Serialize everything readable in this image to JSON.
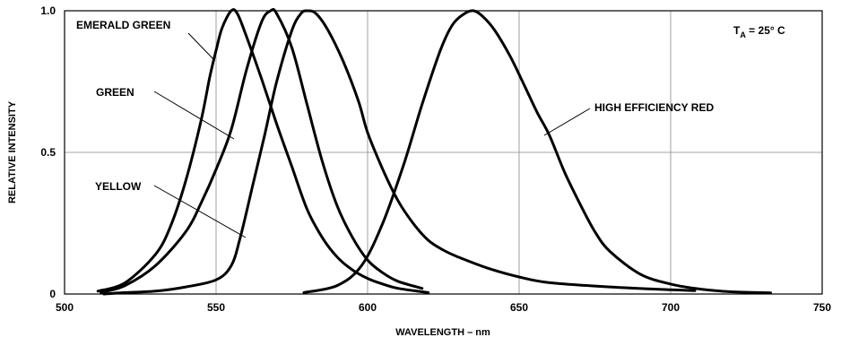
{
  "chart_data": {
    "type": "line",
    "xlabel": "WAVELENGTH – nm",
    "ylabel": "RELATIVE INTENSITY",
    "xlim": [
      500,
      750
    ],
    "ylim": [
      0,
      1.0
    ],
    "x_ticks": [
      500,
      550,
      600,
      650,
      700,
      750
    ],
    "x_tick_labels": [
      "500",
      "550",
      "600",
      "650",
      "700",
      "750"
    ],
    "y_ticks": [
      0,
      0.5,
      1.0
    ],
    "y_tick_labels": [
      "0",
      "0.5",
      "1.0"
    ],
    "grid": true,
    "condition": {
      "main": "T",
      "sub": "A",
      "rest": " = 25° C"
    },
    "series": [
      {
        "name": "EMERALD GREEN",
        "points": [
          [
            511,
            0.01
          ],
          [
            520,
            0.04
          ],
          [
            530,
            0.14
          ],
          [
            535,
            0.24
          ],
          [
            540,
            0.4
          ],
          [
            545,
            0.61
          ],
          [
            548,
            0.77
          ],
          [
            550,
            0.86
          ],
          [
            552,
            0.94
          ],
          [
            555,
            1.0
          ],
          [
            557,
            0.99
          ],
          [
            560,
            0.91
          ],
          [
            565,
            0.76
          ],
          [
            570,
            0.6
          ],
          [
            575,
            0.45
          ],
          [
            580,
            0.3
          ],
          [
            585,
            0.2
          ],
          [
            590,
            0.13
          ],
          [
            595,
            0.085
          ],
          [
            600,
            0.055
          ],
          [
            605,
            0.035
          ],
          [
            610,
            0.02
          ],
          [
            620,
            0.005
          ]
        ]
      },
      {
        "name": "GREEN",
        "points": [
          [
            512,
            0.005
          ],
          [
            520,
            0.03
          ],
          [
            530,
            0.1
          ],
          [
            540,
            0.22
          ],
          [
            545,
            0.32
          ],
          [
            550,
            0.44
          ],
          [
            555,
            0.58
          ],
          [
            560,
            0.79
          ],
          [
            565,
            0.96
          ],
          [
            568,
            1.0
          ],
          [
            570,
            0.99
          ],
          [
            575,
            0.87
          ],
          [
            580,
            0.67
          ],
          [
            585,
            0.47
          ],
          [
            590,
            0.31
          ],
          [
            595,
            0.2
          ],
          [
            600,
            0.12
          ],
          [
            605,
            0.075
          ],
          [
            610,
            0.045
          ],
          [
            618,
            0.02
          ]
        ]
      },
      {
        "name": "YELLOW",
        "points": [
          [
            513,
            0.0
          ],
          [
            520,
            0.005
          ],
          [
            530,
            0.01
          ],
          [
            540,
            0.025
          ],
          [
            550,
            0.05
          ],
          [
            555,
            0.1
          ],
          [
            558,
            0.2
          ],
          [
            562,
            0.38
          ],
          [
            566,
            0.56
          ],
          [
            570,
            0.75
          ],
          [
            575,
            0.93
          ],
          [
            578,
            0.99
          ],
          [
            580,
            1.0
          ],
          [
            583,
            0.99
          ],
          [
            587,
            0.93
          ],
          [
            592,
            0.82
          ],
          [
            597,
            0.68
          ],
          [
            600,
            0.57
          ],
          [
            605,
            0.44
          ],
          [
            610,
            0.33
          ],
          [
            615,
            0.25
          ],
          [
            620,
            0.19
          ],
          [
            625,
            0.155
          ],
          [
            630,
            0.13
          ],
          [
            640,
            0.09
          ],
          [
            650,
            0.06
          ],
          [
            660,
            0.04
          ],
          [
            680,
            0.025
          ],
          [
            700,
            0.015
          ],
          [
            708,
            0.012
          ]
        ]
      },
      {
        "name": "HIGH EFFICIENCY RED",
        "points": [
          [
            579,
            0.005
          ],
          [
            590,
            0.03
          ],
          [
            598,
            0.1
          ],
          [
            605,
            0.25
          ],
          [
            612,
            0.46
          ],
          [
            618,
            0.67
          ],
          [
            624,
            0.86
          ],
          [
            628,
            0.95
          ],
          [
            632,
            0.99
          ],
          [
            635,
            1.0
          ],
          [
            638,
            0.98
          ],
          [
            642,
            0.93
          ],
          [
            647,
            0.84
          ],
          [
            652,
            0.73
          ],
          [
            656,
            0.64
          ],
          [
            660,
            0.56
          ],
          [
            665,
            0.43
          ],
          [
            670,
            0.32
          ],
          [
            675,
            0.22
          ],
          [
            680,
            0.15
          ],
          [
            690,
            0.07
          ],
          [
            700,
            0.035
          ],
          [
            710,
            0.017
          ],
          [
            720,
            0.008
          ],
          [
            733,
            0.004
          ]
        ]
      }
    ],
    "annotations": [
      {
        "text": "EMERALD GREEN",
        "series": "EMERALD GREEN"
      },
      {
        "text": "GREEN",
        "series": "GREEN"
      },
      {
        "text": "YELLOW",
        "series": "YELLOW"
      },
      {
        "text": "HIGH EFFICIENCY RED",
        "series": "HIGH EFFICIENCY RED"
      }
    ]
  }
}
